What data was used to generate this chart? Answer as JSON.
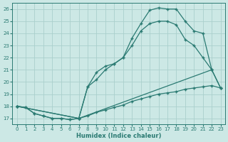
{
  "xlabel": "Humidex (Indice chaleur)",
  "bg_color": "#cce8e5",
  "grid_color": "#aad0cc",
  "line_color": "#2a7a72",
  "xlim": [
    -0.5,
    23.5
  ],
  "ylim": [
    16.5,
    26.5
  ],
  "xticks": [
    0,
    1,
    2,
    3,
    4,
    5,
    6,
    7,
    8,
    9,
    10,
    11,
    12,
    13,
    14,
    15,
    16,
    17,
    18,
    19,
    20,
    21,
    22,
    23
  ],
  "yticks": [
    17,
    18,
    19,
    20,
    21,
    22,
    23,
    24,
    25,
    26
  ],
  "line1_x": [
    0,
    1,
    2,
    3,
    4,
    5,
    6,
    7,
    8,
    9,
    10,
    11,
    12,
    13,
    14,
    15,
    16,
    17,
    18,
    19,
    20,
    21,
    22
  ],
  "line1_y": [
    18.0,
    17.9,
    17.4,
    17.2,
    17.0,
    17.0,
    16.9,
    17.0,
    19.6,
    20.8,
    21.3,
    21.5,
    22.0,
    23.6,
    24.8,
    25.9,
    26.1,
    26.0,
    26.0,
    25.0,
    24.2,
    24.0,
    21.0
  ],
  "line2_x": [
    0,
    7,
    8,
    9,
    10,
    11,
    12,
    13,
    14,
    15,
    16,
    17,
    18,
    19,
    20,
    21,
    22,
    23
  ],
  "line2_y": [
    18.0,
    17.0,
    19.6,
    20.2,
    21.0,
    21.5,
    22.0,
    23.0,
    24.2,
    24.8,
    25.0,
    25.0,
    24.7,
    23.5,
    23.0,
    22.0,
    21.0,
    19.5
  ],
  "line3_x": [
    0,
    1,
    2,
    3,
    4,
    5,
    6,
    7,
    8,
    9,
    10,
    11,
    12,
    13,
    14,
    15,
    16,
    17,
    18,
    19,
    20,
    21,
    22,
    23
  ],
  "line3_y": [
    18.0,
    17.9,
    17.4,
    17.2,
    17.0,
    17.0,
    16.9,
    17.0,
    17.2,
    17.5,
    17.7,
    17.9,
    18.1,
    18.4,
    18.6,
    18.8,
    19.0,
    19.1,
    19.2,
    19.4,
    19.5,
    19.6,
    19.7,
    19.5
  ],
  "line4_x": [
    0,
    7,
    22,
    23
  ],
  "line4_y": [
    18.0,
    17.0,
    21.0,
    19.5
  ]
}
